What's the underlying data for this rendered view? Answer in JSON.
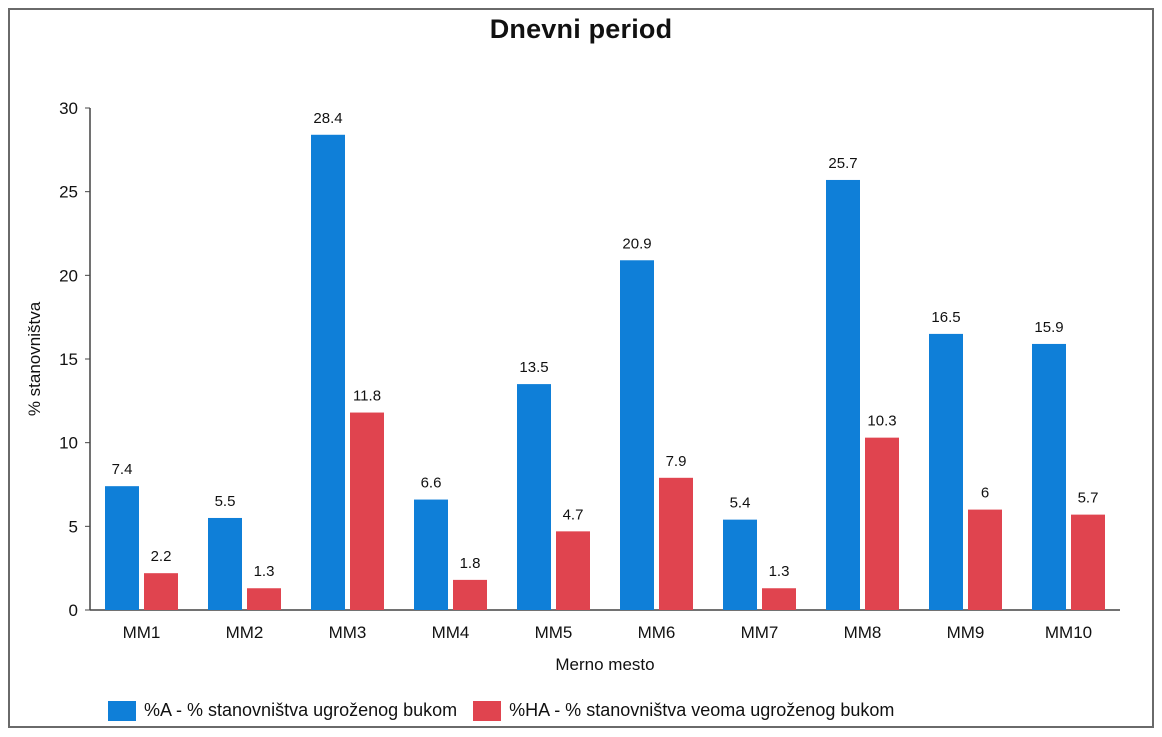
{
  "chart_data": {
    "type": "bar",
    "title": "Dnevni period",
    "xlabel": "Merno mesto",
    "ylabel": "% stanovništva",
    "categories": [
      "MM1",
      "MM2",
      "MM3",
      "MM4",
      "MM5",
      "MM6",
      "MM7",
      "MM8",
      "MM9",
      "MM10"
    ],
    "series": [
      {
        "name": "%A - % stanovništva ugroženog bukom",
        "color": "#0f7fd8",
        "values": [
          7.4,
          5.5,
          28.4,
          6.6,
          13.5,
          20.9,
          5.4,
          25.7,
          16.5,
          15.9
        ]
      },
      {
        "name": "%HA - % stanovništva veoma ugroženog bukom",
        "color": "#e0444f",
        "values": [
          2.2,
          1.3,
          11.8,
          1.8,
          4.7,
          7.9,
          1.3,
          10.3,
          6,
          5.7
        ]
      }
    ],
    "ylim": [
      0,
      30
    ],
    "yticks": [
      0,
      5,
      10,
      15,
      20,
      25,
      30
    ],
    "grid": false,
    "legend_position": "bottom-left"
  }
}
